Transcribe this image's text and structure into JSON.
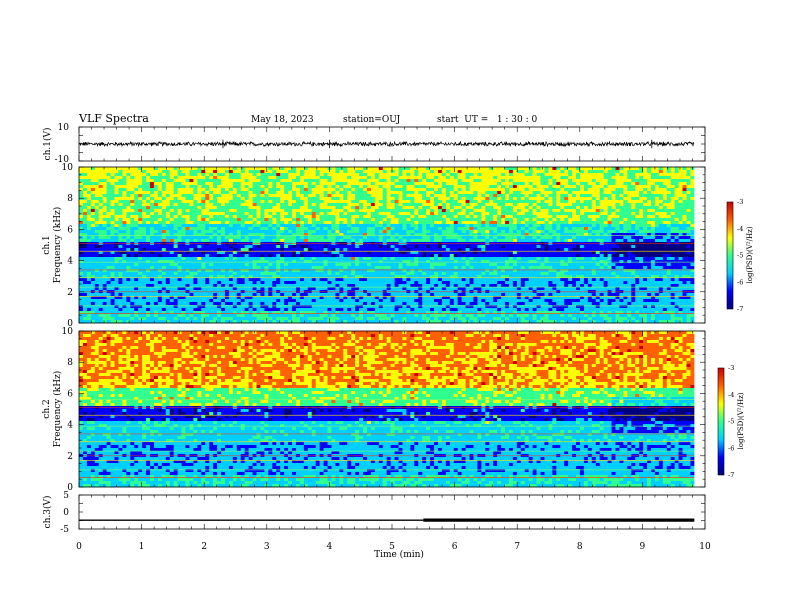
{
  "header": {
    "title": "VLF Spectra",
    "date": "May 18, 2023",
    "station": "station=OUJ",
    "start": "start  UT =   1 : 30 : 0"
  },
  "chart_data": [
    {
      "type": "line",
      "panel": "ch1-waveform",
      "ylabel": "ch.1(V)",
      "ylim": [
        -10,
        10
      ],
      "yticks": [
        "10",
        "-10"
      ],
      "xlim": [
        0,
        10
      ],
      "x_end": 9.83,
      "baseline": 0,
      "amplitude_approx": 1.2
    },
    {
      "type": "heatmap",
      "panel": "ch1-spectrogram",
      "ylabel": "ch.1",
      "ylabel2": "Frequency (kHz)",
      "ylim": [
        0,
        10
      ],
      "yticks": [
        "0",
        "2",
        "4",
        "6",
        "8",
        "10"
      ],
      "xlim": [
        0,
        10
      ],
      "x_end": 9.83,
      "zlabel": "log(PSD)(V²/Hz)",
      "zlim": [
        -7,
        -3
      ],
      "zticks": [
        "-3",
        "-4",
        "-5",
        "-6",
        "-7"
      ],
      "colormap": [
        "#00007f",
        "#0000ff",
        "#00d0ff",
        "#30ff90",
        "#ffff00",
        "#ff6000",
        "#cc0000"
      ]
    },
    {
      "type": "heatmap",
      "panel": "ch2-spectrogram",
      "ylabel": "ch.2",
      "ylabel2": "Frequency (kHz)",
      "ylim": [
        0,
        10
      ],
      "yticks": [
        "0",
        "2",
        "4",
        "6",
        "8",
        "10"
      ],
      "xlim": [
        0,
        10
      ],
      "x_end": 9.83,
      "zlabel": "log(PSD)(V²/Hz)",
      "zlim": [
        -7,
        -3
      ],
      "zticks": [
        "-3",
        "-4",
        "-5",
        "-6",
        "-7"
      ],
      "colormap": [
        "#00007f",
        "#0000ff",
        "#00d0ff",
        "#30ff90",
        "#ffff00",
        "#ff6000",
        "#cc0000"
      ]
    },
    {
      "type": "line",
      "panel": "ch3-waveform",
      "ylabel": "ch.3(V)",
      "ylim": [
        -5,
        5
      ],
      "yticks": [
        "5",
        "0",
        "-5"
      ],
      "xlim": [
        0,
        10
      ],
      "x_end": 9.83,
      "xlabel": "Time (min)",
      "xticks": [
        "0",
        "1",
        "2",
        "3",
        "4",
        "5",
        "6",
        "7",
        "8",
        "9",
        "10"
      ],
      "value": -2.4,
      "thick_from": 5.5
    }
  ]
}
